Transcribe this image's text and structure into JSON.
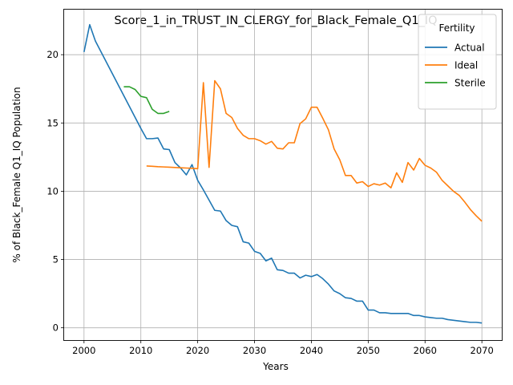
{
  "chart_data": {
    "type": "line",
    "title": "Score_1_in_TRUST_IN_CLERGY_for_Black_Female_Q1_IQ",
    "xlabel": "Years",
    "ylabel": "% of Black_Female Q1_IQ Population",
    "xlim": [
      1996.5,
      2073.5
    ],
    "ylim": [
      -0.9,
      23.3
    ],
    "xticks": [
      2000,
      2010,
      2020,
      2030,
      2040,
      2050,
      2060,
      2070
    ],
    "yticks": [
      0,
      5,
      10,
      15,
      20
    ],
    "grid": true,
    "legend": {
      "title": "Fertility",
      "placement": "upper right"
    },
    "series": [
      {
        "name": "Actual",
        "color": "#1f77b4",
        "x": [
          2000,
          2001,
          2002,
          2003,
          2004,
          2005,
          2006,
          2007,
          2008,
          2009,
          2010,
          2011,
          2012,
          2013,
          2014,
          2015,
          2016,
          2017,
          2018,
          2019,
          2020,
          2021,
          2022,
          2023,
          2024,
          2025,
          2026,
          2027,
          2028,
          2029,
          2030,
          2031,
          2032,
          2033,
          2034,
          2035,
          2036,
          2037,
          2038,
          2039,
          2040,
          2041,
          2042,
          2043,
          2044,
          2045,
          2046,
          2047,
          2048,
          2049,
          2050,
          2051,
          2052,
          2053,
          2054,
          2055,
          2056,
          2057,
          2058,
          2059,
          2060,
          2061,
          2062,
          2063,
          2064,
          2065,
          2066,
          2067,
          2068,
          2069,
          2070
        ],
        "y": [
          20.2,
          22.2,
          21.0,
          20.2,
          19.4,
          18.6,
          17.8,
          17.0,
          16.2,
          15.4,
          14.6,
          13.85,
          13.85,
          13.9,
          13.1,
          13.05,
          12.1,
          11.7,
          11.2,
          11.95,
          10.8,
          10.1,
          9.35,
          8.6,
          8.55,
          7.85,
          7.5,
          7.4,
          6.3,
          6.2,
          5.6,
          5.45,
          4.9,
          5.1,
          4.25,
          4.2,
          4.0,
          4.0,
          3.65,
          3.85,
          3.75,
          3.9,
          3.6,
          3.2,
          2.7,
          2.5,
          2.2,
          2.15,
          1.95,
          1.95,
          1.3,
          1.3,
          1.1,
          1.1,
          1.05,
          1.05,
          1.05,
          1.05,
          0.9,
          0.9,
          0.8,
          0.75,
          0.7,
          0.7,
          0.6,
          0.55,
          0.5,
          0.45,
          0.4,
          0.4,
          0.35
        ]
      },
      {
        "name": "Ideal",
        "color": "#ff7f0e",
        "x": [
          2011,
          2012,
          2013,
          2014,
          2015,
          2016,
          2017,
          2018,
          2019,
          2020,
          2021,
          2022,
          2023,
          2024,
          2025,
          2026,
          2027,
          2028,
          2029,
          2030,
          2031,
          2032,
          2033,
          2034,
          2035,
          2036,
          2037,
          2038,
          2039,
          2040,
          2041,
          2042,
          2043,
          2044,
          2045,
          2046,
          2047,
          2048,
          2049,
          2050,
          2051,
          2052,
          2053,
          2054,
          2055,
          2056,
          2057,
          2058,
          2059,
          2060,
          2061,
          2062,
          2063,
          2064,
          2065,
          2066,
          2067,
          2068,
          2069,
          2070
        ],
        "y": [
          11.85,
          11.83,
          11.8,
          11.78,
          11.76,
          11.74,
          11.72,
          11.7,
          11.68,
          11.65,
          17.95,
          11.75,
          18.1,
          17.5,
          15.7,
          15.4,
          14.6,
          14.1,
          13.85,
          13.85,
          13.7,
          13.45,
          13.65,
          13.15,
          13.1,
          13.55,
          13.55,
          14.95,
          15.3,
          16.15,
          16.15,
          15.35,
          14.5,
          13.1,
          12.3,
          11.15,
          11.15,
          10.6,
          10.7,
          10.35,
          10.55,
          10.45,
          10.6,
          10.25,
          11.35,
          10.65,
          12.1,
          11.55,
          12.4,
          11.9,
          11.7,
          11.4,
          10.8,
          10.4,
          10.0,
          9.7,
          9.2,
          8.65,
          8.2,
          7.8
        ]
      },
      {
        "name": "Sterile",
        "color": "#2ca02c",
        "x": [
          2007,
          2008,
          2009,
          2010,
          2011,
          2012,
          2013,
          2014,
          2015
        ],
        "y": [
          17.65,
          17.65,
          17.45,
          16.95,
          16.85,
          16.0,
          15.7,
          15.7,
          15.85
        ]
      }
    ]
  }
}
